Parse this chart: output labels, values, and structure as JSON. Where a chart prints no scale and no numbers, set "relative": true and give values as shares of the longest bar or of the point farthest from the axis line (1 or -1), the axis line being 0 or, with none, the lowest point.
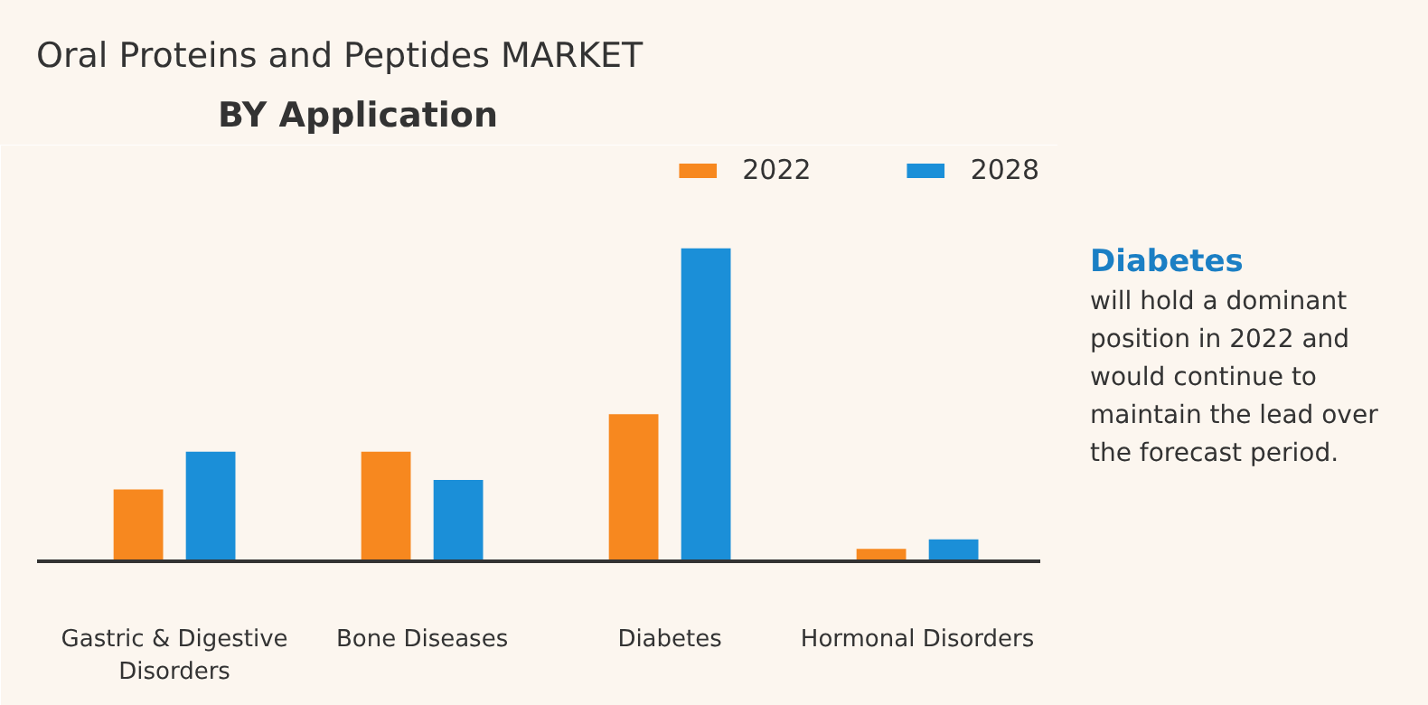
{
  "chart_data": {
    "type": "bar",
    "relative": true,
    "title": "Oral Proteins and Peptides MARKET",
    "subtitle": "BY Application",
    "categories": [
      "Gastric & Digestive Disorders",
      "Bone Diseases",
      "Diabetes",
      "Hormonal Disorders"
    ],
    "series": [
      {
        "name": "2022",
        "color": "#f7881f",
        "values": [
          0.23,
          0.35,
          0.47,
          0.04
        ]
      },
      {
        "name": "2028",
        "color": "#1b8fd8",
        "values": [
          0.35,
          0.26,
          1.0,
          0.07
        ]
      }
    ],
    "legend": "top right",
    "annotations": [
      "Diabetes",
      "will hold a dominant position in 2022 and would continue to maintain the lead over the forecast period."
    ]
  }
}
